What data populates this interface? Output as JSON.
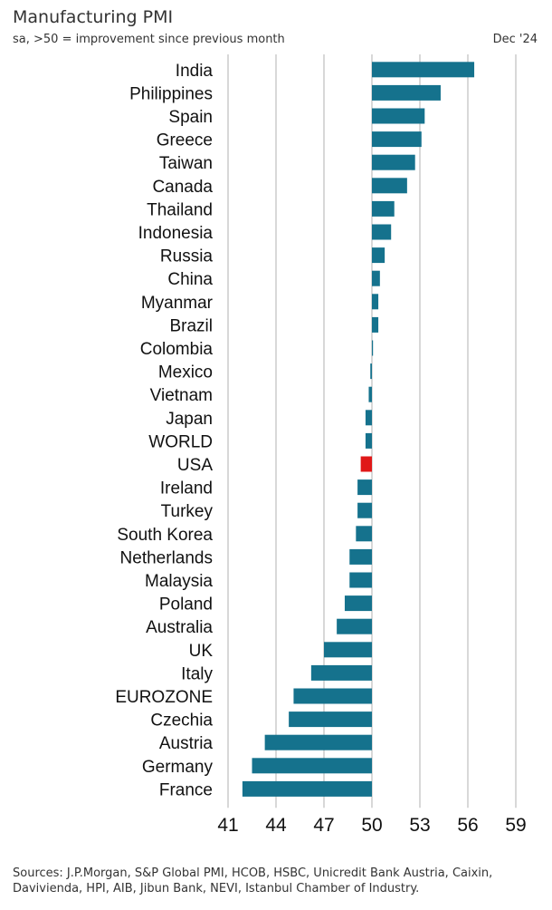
{
  "header": {
    "title": "Manufacturing PMI",
    "subtitle": "sa, >50 = improvement since previous month",
    "date": "Dec '24"
  },
  "footer": {
    "sources": "Sources: J.P.Morgan, S&P Global PMI, HCOB, HSBC, Unicredit Bank Austria, Caixin, Davivienda, HPI, AIB, Jibun Bank, NEVI, Istanbul Chamber of Industry."
  },
  "colors": {
    "bar": "#15728d",
    "highlight": "#e01818",
    "grid": "#cccccc"
  },
  "chart_data": {
    "type": "bar",
    "orientation": "horizontal",
    "title": "Manufacturing PMI",
    "subtitle": "sa, >50 = improvement since previous month",
    "baseline": 50,
    "xlim": [
      41,
      59
    ],
    "xticks": [
      41,
      44,
      47,
      50,
      53,
      56,
      59
    ],
    "grid": true,
    "highlight": "USA",
    "categories": [
      "India",
      "Philippines",
      "Spain",
      "Greece",
      "Taiwan",
      "Canada",
      "Thailand",
      "Indonesia",
      "Russia",
      "China",
      "Myanmar",
      "Brazil",
      "Colombia",
      "Mexico",
      "Vietnam",
      "Japan",
      "WORLD",
      "USA",
      "Ireland",
      "Turkey",
      "South Korea",
      "Netherlands",
      "Malaysia",
      "Poland",
      "Australia",
      "UK",
      "Italy",
      "EUROZONE",
      "Czechia",
      "Austria",
      "Germany",
      "France"
    ],
    "values": [
      56.4,
      54.3,
      53.3,
      53.1,
      52.7,
      52.2,
      51.4,
      51.2,
      50.8,
      50.5,
      50.4,
      50.4,
      50.0,
      49.9,
      49.8,
      49.6,
      49.6,
      49.3,
      49.1,
      49.1,
      49.0,
      48.6,
      48.6,
      48.3,
      47.8,
      47.0,
      46.2,
      45.1,
      44.8,
      43.3,
      42.5,
      41.9
    ]
  }
}
